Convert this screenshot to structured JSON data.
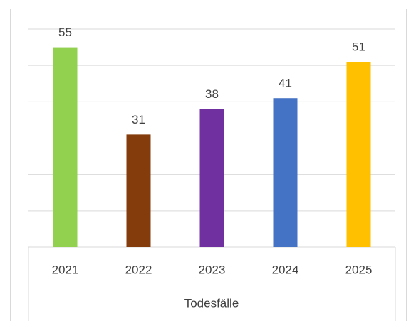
{
  "chart_data": {
    "type": "bar",
    "categories": [
      "2021",
      "2022",
      "2023",
      "2024",
      "2025"
    ],
    "values": [
      55,
      31,
      38,
      41,
      51
    ],
    "colors": [
      "#92d050",
      "#843c0c",
      "#7030a0",
      "#4472c4",
      "#ffc000"
    ],
    "xlabel": "Todesfälle",
    "ylim": [
      0,
      60
    ],
    "yticks": [
      0,
      10,
      20,
      30,
      40,
      50,
      60
    ],
    "grid": true
  }
}
